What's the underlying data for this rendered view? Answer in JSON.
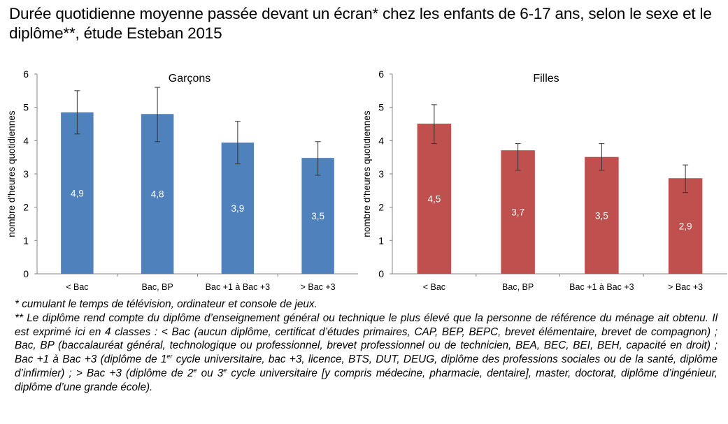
{
  "title": "Durée quotidienne moyenne passée devant un écran* chez les enfants de 6-17 ans, selon le sexe et le diplôme**, étude Esteban 2015",
  "chart_data": [
    {
      "type": "bar",
      "title": "Garçons",
      "xlabel": "",
      "ylabel": "nombre d'heures quotidiennes",
      "ylim": [
        0,
        6
      ],
      "yticks": [
        "0",
        "1",
        "2",
        "3",
        "4",
        "5",
        "6"
      ],
      "categories": [
        "< Bac",
        "Bac, BP",
        "Bac +1 à Bac +3",
        "> Bac +3"
      ],
      "values": [
        4.85,
        4.8,
        3.94,
        3.48
      ],
      "data_labels": [
        "4,9",
        "4,8",
        "3,9",
        "3,5"
      ],
      "error_low": [
        4.2,
        3.97,
        3.3,
        2.96
      ],
      "error_high": [
        5.5,
        5.6,
        4.58,
        3.97
      ],
      "color": "#4F81BD",
      "grid": false,
      "legend": "none"
    },
    {
      "type": "bar",
      "title": "Filles",
      "xlabel": "",
      "ylabel": "nombre d'heures quotidiennes",
      "ylim": [
        0,
        6
      ],
      "yticks": [
        "0",
        "1",
        "2",
        "3",
        "4",
        "5",
        "6"
      ],
      "categories": [
        "< Bac",
        "Bac, BP",
        "Bac +1 à Bac +3",
        "> Bac +3"
      ],
      "values": [
        4.51,
        3.71,
        3.51,
        2.87
      ],
      "data_labels": [
        "4,5",
        "3,7",
        "3,5",
        "2,9"
      ],
      "error_low": [
        3.91,
        3.11,
        3.11,
        2.44
      ],
      "error_high": [
        5.08,
        3.91,
        3.91,
        3.27
      ],
      "color": "#C0504D",
      "grid": false,
      "legend": "none"
    }
  ],
  "footnotes": {
    "note1": "* cumulant le temps de télévision, ordinateur et console de jeux.",
    "note2_a": "** Le diplôme rend compte du diplôme d’enseignement général ou technique le plus élevé que la personne de référence du ménage ait obtenu. Il est exprimé ici en 4 classes : < Bac (aucun diplôme, certificat d’études primaires, CAP, BEP, BEPC, brevet élémentaire, brevet de compagnon) ; Bac, BP (baccalauréat général, technologique ou professionnel, brevet professionnel ou de technicien, BEA, BEC, BEI, BEH, capacité en droit) ; Bac +1 à Bac +3 (diplôme de 1",
    "sup_er": "er",
    "note2_b": " cycle universitaire, bac +3, licence, BTS, DUT, DEUG, diplôme des professions sociales ou de la santé, diplôme d’infirmier) ; > Bac +3 (diplôme de 2",
    "sup_e1": "e",
    "note2_c": " ou 3",
    "sup_e2": "e",
    "note2_d": " cycle universitaire [y compris médecine, pharmacie, dentaire], master, doctorat, diplôme d’ingénieur, diplôme d’une grande école)."
  }
}
